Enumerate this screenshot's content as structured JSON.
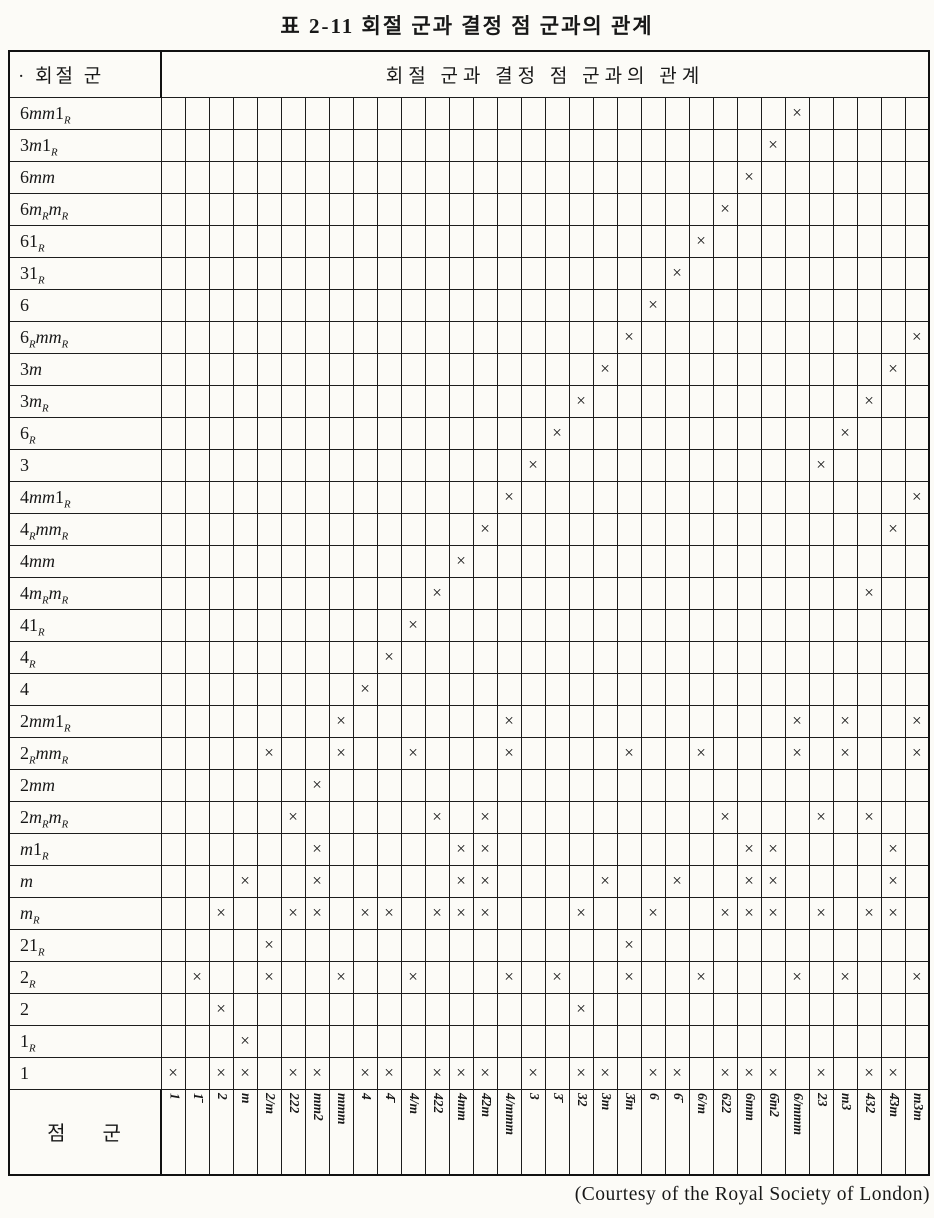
{
  "title": "표 2-11  회절 군과 결정 점 군과의 관계",
  "header": {
    "corner": "· 회절 군",
    "span": "회절 군과 결정 점 군과의 관계"
  },
  "footer_corner": "점 군",
  "caption": "(Courtesy of the Royal Society of London)",
  "mark": "×",
  "colors": {
    "ink": "#181818",
    "paper": "#fcfbf7"
  },
  "point_groups": [
    "1",
    "1̄",
    "2",
    "m",
    "2/m",
    "222",
    "mm2",
    "mmm",
    "4",
    "4̄",
    "4/m",
    "422",
    "4mm",
    "4̄2m",
    "4/mmm",
    "3",
    "3̄",
    "32",
    "3m",
    "3̄m",
    "6",
    "6̄",
    "6/m",
    "622",
    "6mm",
    "6̄m2",
    "6/mmm",
    "23",
    "m3",
    "432",
    "4̄3m",
    "m3m"
  ],
  "rows": [
    {
      "label": "6mm1_R",
      "cols": [
        27
      ]
    },
    {
      "label": "3m1_R",
      "cols": [
        26
      ]
    },
    {
      "label": "6mm",
      "cols": [
        25
      ]
    },
    {
      "label": "6m_Rm_R",
      "cols": [
        24
      ]
    },
    {
      "label": "61_R",
      "cols": [
        23
      ]
    },
    {
      "label": "31_R",
      "cols": [
        22
      ]
    },
    {
      "label": "6",
      "cols": [
        21
      ]
    },
    {
      "label": "6_Rmm_R",
      "cols": [
        20,
        32
      ]
    },
    {
      "label": "3m",
      "cols": [
        19,
        31
      ]
    },
    {
      "label": "3m_R",
      "cols": [
        18,
        30
      ]
    },
    {
      "label": "6_R",
      "cols": [
        17,
        29
      ]
    },
    {
      "label": "3",
      "cols": [
        16,
        28
      ]
    },
    {
      "label": "4mm1_R",
      "cols": [
        15,
        32
      ]
    },
    {
      "label": "4_Rmm_R",
      "cols": [
        14,
        31
      ]
    },
    {
      "label": "4mm",
      "cols": [
        13
      ]
    },
    {
      "label": "4m_Rm_R",
      "cols": [
        12,
        30
      ]
    },
    {
      "label": "41_R",
      "cols": [
        11
      ]
    },
    {
      "label": "4_R",
      "cols": [
        10
      ]
    },
    {
      "label": "4",
      "cols": [
        9
      ]
    },
    {
      "label": "2mm1_R",
      "cols": [
        8,
        15,
        27,
        29,
        32
      ]
    },
    {
      "label": "2_Rmm_R",
      "cols": [
        5,
        8,
        11,
        15,
        20,
        23,
        27,
        29,
        32
      ]
    },
    {
      "label": "2mm",
      "cols": [
        7
      ]
    },
    {
      "label": "2m_Rm_R",
      "cols": [
        6,
        12,
        14,
        24,
        28,
        30
      ]
    },
    {
      "label": "m1_R",
      "cols": [
        7,
        13,
        14,
        25,
        26,
        31
      ]
    },
    {
      "label": "m",
      "cols": [
        4,
        7,
        13,
        14,
        19,
        22,
        25,
        26,
        31
      ]
    },
    {
      "label": "m_R",
      "cols": [
        3,
        6,
        7,
        9,
        10,
        12,
        13,
        14,
        18,
        21,
        24,
        25,
        26,
        28,
        30,
        31
      ]
    },
    {
      "label": "21_R",
      "cols": [
        5,
        20
      ]
    },
    {
      "label": "2_R",
      "cols": [
        2,
        5,
        8,
        11,
        15,
        17,
        20,
        23,
        27,
        29,
        32
      ]
    },
    {
      "label": "2",
      "cols": [
        3,
        18
      ]
    },
    {
      "label": "1_R",
      "cols": [
        4
      ]
    },
    {
      "label": "1",
      "cols": [
        1,
        3,
        4,
        6,
        7,
        9,
        10,
        12,
        13,
        14,
        16,
        18,
        19,
        21,
        22,
        24,
        25,
        26,
        28,
        30,
        31
      ]
    }
  ]
}
